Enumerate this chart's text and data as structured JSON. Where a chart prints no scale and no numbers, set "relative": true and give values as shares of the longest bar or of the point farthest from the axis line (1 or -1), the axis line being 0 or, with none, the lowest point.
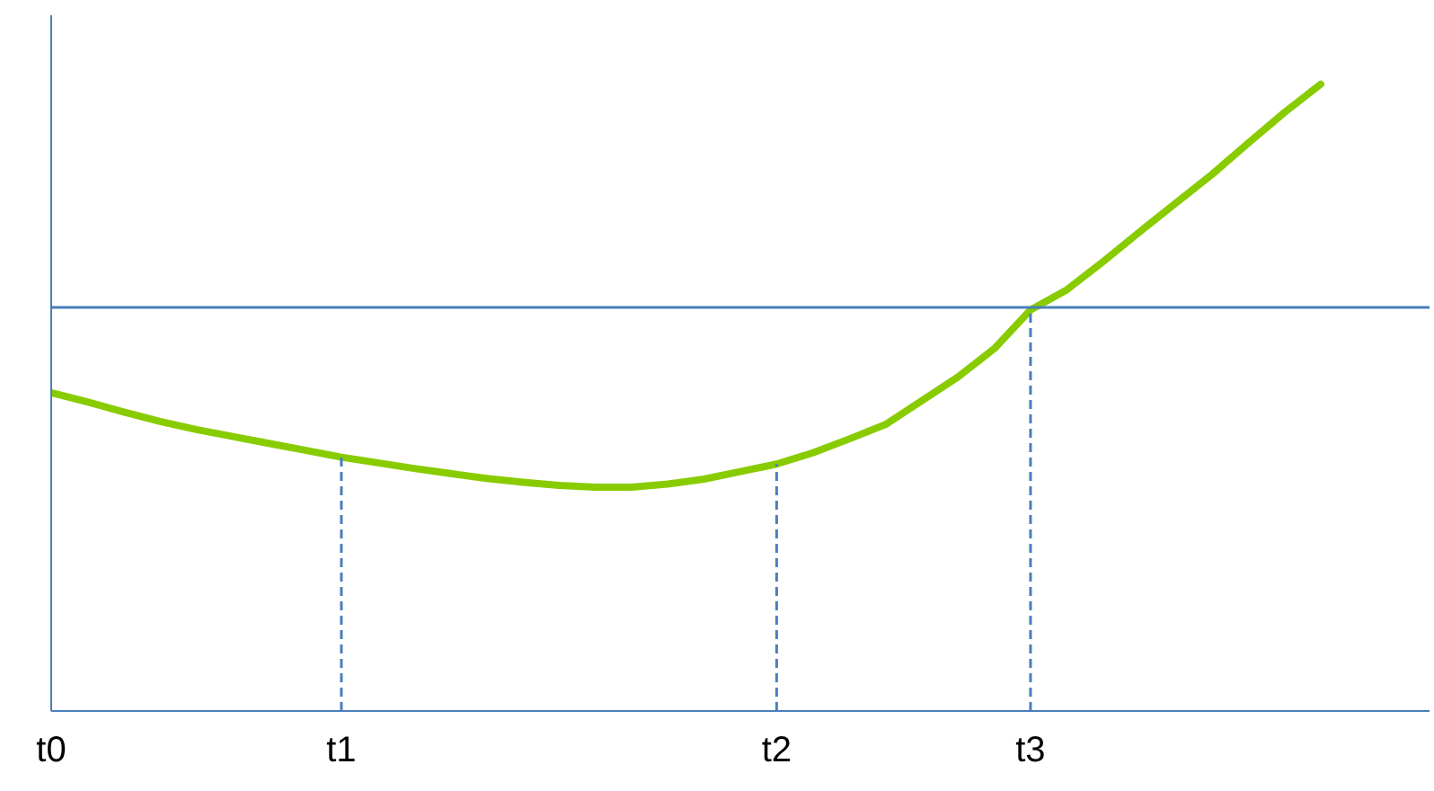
{
  "chart_data": {
    "type": "line",
    "relative": true,
    "tick_labels": "x",
    "grid": false,
    "categories": [
      "t0",
      null,
      null,
      null,
      null,
      null,
      null,
      null,
      "t1",
      null,
      null,
      null,
      null,
      null,
      null,
      null,
      null,
      null,
      null,
      null,
      "t2",
      null,
      null,
      null,
      null,
      null,
      null,
      "t3",
      null,
      null,
      null,
      null,
      null,
      null,
      null,
      null
    ],
    "series": [
      {
        "color": "#88cc00",
        "values": [
          0.508,
          0.493,
          0.477,
          0.462,
          0.449,
          0.438,
          0.427,
          0.416,
          0.405,
          0.396,
          0.387,
          0.379,
          0.371,
          0.365,
          0.36,
          0.357,
          0.357,
          0.362,
          0.37,
          0.382,
          0.394,
          0.412,
          0.434,
          0.457,
          0.495,
          0.533,
          0.578,
          0.64,
          0.672,
          0.717,
          0.764,
          0.81,
          0.856,
          0.906,
          0.955,
          1.0
        ]
      }
    ],
    "ref_lines": [
      {
        "axis": "y",
        "value": 0.644,
        "color": "#4a7ebb",
        "line_style": "solid"
      },
      {
        "axis": "x",
        "value": "t1",
        "color": "#4a7ebb",
        "line_style": "dashed"
      },
      {
        "axis": "x",
        "value": "t2",
        "color": "#4a7ebb",
        "line_style": "dashed"
      },
      {
        "axis": "x",
        "value": "t3",
        "color": "#4a7ebb",
        "line_style": "dashed"
      }
    ]
  }
}
